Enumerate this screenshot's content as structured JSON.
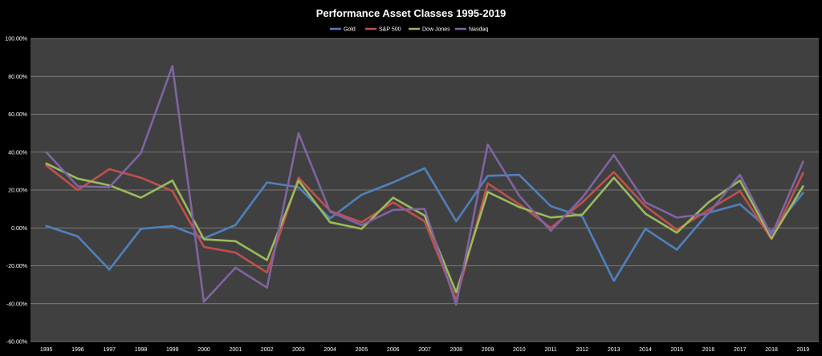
{
  "chart_data": {
    "type": "line",
    "title": "Performance Asset Classes 1995-2019",
    "xlabel": "",
    "ylabel": "",
    "ylim": [
      -60,
      100
    ],
    "yticks": [
      "100.00%",
      "80.00%",
      "60.00%",
      "40.00%",
      "20.00%",
      "0.00%",
      "-20.00%",
      "-40.00%",
      "-60.00%"
    ],
    "categories": [
      "1995",
      "1996",
      "1997",
      "1998",
      "1999",
      "2000",
      "2001",
      "2002",
      "2003",
      "2004",
      "2005",
      "2006",
      "2007",
      "2008",
      "2009",
      "2010",
      "2011",
      "2012",
      "2013",
      "2014",
      "2015",
      "2016",
      "2017",
      "2018",
      "2019"
    ],
    "grid": true,
    "legend_position": "top",
    "series": [
      {
        "name": "Gold",
        "color": "#4f81bd",
        "values": [
          1,
          -4.5,
          -22,
          -0.5,
          1,
          -5.5,
          1.5,
          24,
          21.5,
          5,
          17.5,
          24,
          31.5,
          3.5,
          27.5,
          28,
          11.5,
          6,
          -28,
          -0.5,
          -11.5,
          8,
          12.5,
          -2,
          18.5
        ]
      },
      {
        "name": "S&P 500",
        "color": "#c0504d",
        "values": [
          33,
          20,
          31,
          26.5,
          19.5,
          -10,
          -13,
          -23.5,
          26.5,
          9,
          3,
          13.5,
          3.5,
          -38,
          23.5,
          12.5,
          0,
          13.5,
          29.5,
          11.5,
          -1,
          9.5,
          19.5,
          -6,
          29
        ]
      },
      {
        "name": "Dow Jones",
        "color": "#9bbb59",
        "values": [
          34,
          26,
          22.5,
          16,
          25,
          -6,
          -7,
          -17,
          25,
          3,
          -0.5,
          16,
          6.5,
          -34,
          19,
          11,
          5.5,
          7,
          26.5,
          7.5,
          -2.5,
          13.5,
          25,
          -5.5,
          22
        ]
      },
      {
        "name": "Nasdaq",
        "color": "#8064a2",
        "values": [
          40,
          22,
          21.5,
          39.5,
          85.5,
          -39,
          -21,
          -31.5,
          50,
          8.5,
          1.5,
          9.5,
          10,
          -40.5,
          44,
          17,
          -1.5,
          16,
          38.5,
          13.5,
          5.5,
          7.5,
          28,
          -4,
          35
        ]
      }
    ]
  }
}
